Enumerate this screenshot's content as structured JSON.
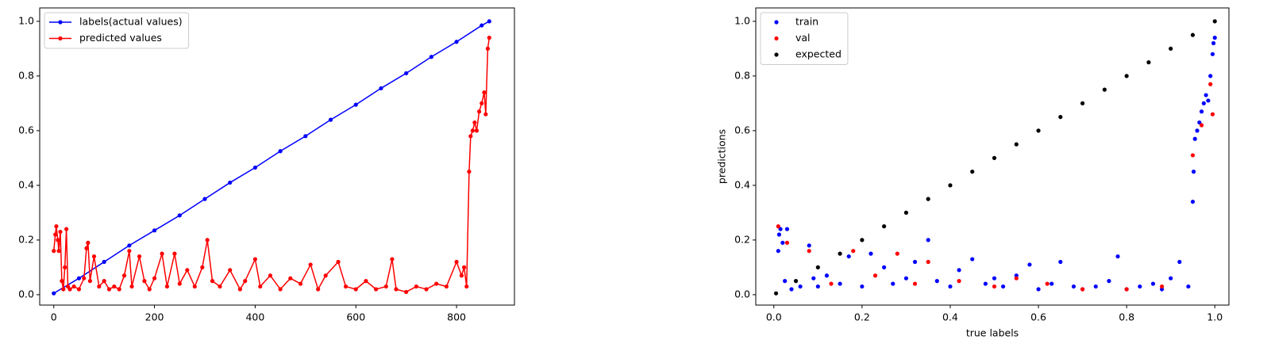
{
  "chart_data": [
    {
      "type": "line",
      "xlim": [
        -28,
        915
      ],
      "ylim": [
        -0.038,
        1.049
      ],
      "xticks": [
        0,
        200,
        400,
        600,
        800
      ],
      "yticks": [
        {
          "value": 0,
          "label": "0.0"
        },
        {
          "value": 0.2,
          "label": "0.2"
        },
        {
          "value": 0.4,
          "label": "0.4"
        },
        {
          "value": 0.6,
          "label": "0.6"
        },
        {
          "value": 0.8,
          "label": "0.8"
        },
        {
          "value": 1,
          "label": "1.0"
        }
      ],
      "legend": "upper left",
      "series": [
        {
          "name": "labels(actual values)",
          "color": "#0000ff",
          "x": [
            0,
            50,
            100,
            150,
            200,
            250,
            300,
            350,
            400,
            450,
            500,
            550,
            600,
            650,
            700,
            750,
            800,
            850,
            865
          ],
          "values": [
            0.005,
            0.06,
            0.12,
            0.18,
            0.235,
            0.29,
            0.35,
            0.41,
            0.465,
            0.525,
            0.58,
            0.64,
            0.695,
            0.755,
            0.81,
            0.87,
            0.925,
            0.985,
            1.0
          ]
        },
        {
          "name": "predicted values",
          "color": "#ff0000",
          "x": [
            0,
            3,
            5,
            8,
            10,
            13,
            16,
            19,
            22,
            25,
            28,
            32,
            40,
            50,
            60,
            65,
            68,
            72,
            80,
            90,
            100,
            110,
            120,
            130,
            140,
            150,
            155,
            170,
            180,
            190,
            200,
            215,
            225,
            240,
            250,
            265,
            280,
            295,
            305,
            315,
            330,
            350,
            370,
            380,
            400,
            410,
            430,
            450,
            470,
            490,
            510,
            525,
            540,
            565,
            580,
            600,
            620,
            640,
            660,
            672,
            680,
            700,
            720,
            740,
            760,
            780,
            800,
            810,
            815,
            820,
            825,
            828,
            832,
            836,
            840,
            845,
            850,
            855,
            858,
            862,
            865
          ],
          "values": [
            0.16,
            0.22,
            0.25,
            0.2,
            0.16,
            0.23,
            0.05,
            0.02,
            0.1,
            0.24,
            0.03,
            0.02,
            0.03,
            0.02,
            0.06,
            0.17,
            0.19,
            0.05,
            0.14,
            0.03,
            0.05,
            0.02,
            0.03,
            0.02,
            0.07,
            0.16,
            0.03,
            0.14,
            0.05,
            0.02,
            0.06,
            0.15,
            0.03,
            0.15,
            0.04,
            0.09,
            0.03,
            0.1,
            0.2,
            0.05,
            0.03,
            0.09,
            0.02,
            0.05,
            0.13,
            0.03,
            0.07,
            0.02,
            0.06,
            0.04,
            0.11,
            0.02,
            0.07,
            0.12,
            0.03,
            0.02,
            0.05,
            0.02,
            0.03,
            0.13,
            0.02,
            0.01,
            0.03,
            0.02,
            0.04,
            0.03,
            0.12,
            0.07,
            0.1,
            0.03,
            0.45,
            0.58,
            0.6,
            0.63,
            0.6,
            0.67,
            0.7,
            0.74,
            0.66,
            0.9,
            0.94
          ]
        }
      ]
    },
    {
      "type": "scatter",
      "x_label": "true labels",
      "y_label": "predictions",
      "xlim": [
        -0.041,
        1.032
      ],
      "ylim": [
        -0.038,
        1.049
      ],
      "xticks": [
        {
          "value": 0,
          "label": "0.0"
        },
        {
          "value": 0.2,
          "label": "0.2"
        },
        {
          "value": 0.4,
          "label": "0.4"
        },
        {
          "value": 0.6,
          "label": "0.6"
        },
        {
          "value": 0.8,
          "label": "0.8"
        },
        {
          "value": 1,
          "label": "1.0"
        }
      ],
      "yticks": [
        {
          "value": 0,
          "label": "0.0"
        },
        {
          "value": 0.2,
          "label": "0.2"
        },
        {
          "value": 0.4,
          "label": "0.4"
        },
        {
          "value": 0.6,
          "label": "0.6"
        },
        {
          "value": 0.8,
          "label": "0.8"
        },
        {
          "value": 1,
          "label": "1.0"
        }
      ],
      "legend": "upper left",
      "series": [
        {
          "name": "train",
          "color": "#0000ff",
          "x": [
            0.01,
            0.012,
            0.015,
            0.02,
            0.025,
            0.03,
            0.04,
            0.06,
            0.08,
            0.09,
            0.1,
            0.12,
            0.15,
            0.17,
            0.2,
            0.22,
            0.25,
            0.27,
            0.3,
            0.32,
            0.35,
            0.37,
            0.4,
            0.42,
            0.45,
            0.48,
            0.5,
            0.52,
            0.55,
            0.58,
            0.6,
            0.63,
            0.65,
            0.68,
            0.7,
            0.73,
            0.76,
            0.78,
            0.8,
            0.83,
            0.86,
            0.88,
            0.9,
            0.92,
            0.94,
            0.95,
            0.952,
            0.955,
            0.96,
            0.965,
            0.97,
            0.975,
            0.98,
            0.985,
            0.99,
            0.995,
            0.997,
            1.0
          ],
          "values": [
            0.16,
            0.22,
            0.24,
            0.19,
            0.05,
            0.24,
            0.02,
            0.03,
            0.18,
            0.06,
            0.03,
            0.07,
            0.04,
            0.14,
            0.03,
            0.15,
            0.1,
            0.04,
            0.06,
            0.12,
            0.2,
            0.05,
            0.03,
            0.09,
            0.13,
            0.04,
            0.06,
            0.03,
            0.07,
            0.11,
            0.02,
            0.04,
            0.12,
            0.03,
            0.02,
            0.03,
            0.05,
            0.14,
            0.02,
            0.03,
            0.04,
            0.02,
            0.06,
            0.12,
            0.03,
            0.34,
            0.45,
            0.57,
            0.6,
            0.63,
            0.67,
            0.7,
            0.73,
            0.71,
            0.8,
            0.88,
            0.92,
            0.94
          ]
        },
        {
          "name": "val",
          "color": "#ff0000",
          "x": [
            0.01,
            0.03,
            0.08,
            0.13,
            0.18,
            0.23,
            0.28,
            0.32,
            0.35,
            0.42,
            0.5,
            0.55,
            0.62,
            0.7,
            0.8,
            0.88,
            0.95,
            0.97,
            0.99,
            0.995
          ],
          "values": [
            0.25,
            0.19,
            0.16,
            0.04,
            0.16,
            0.07,
            0.15,
            0.04,
            0.12,
            0.05,
            0.03,
            0.06,
            0.04,
            0.02,
            0.02,
            0.03,
            0.51,
            0.62,
            0.77,
            0.66
          ]
        },
        {
          "name": "expected",
          "color": "#000000",
          "x": [
            0.005,
            0.05,
            0.1,
            0.15,
            0.2,
            0.25,
            0.3,
            0.35,
            0.4,
            0.45,
            0.5,
            0.55,
            0.6,
            0.65,
            0.7,
            0.75,
            0.8,
            0.85,
            0.9,
            0.95,
            1.0
          ],
          "values": [
            0.005,
            0.05,
            0.1,
            0.15,
            0.2,
            0.25,
            0.3,
            0.35,
            0.4,
            0.45,
            0.5,
            0.55,
            0.6,
            0.65,
            0.7,
            0.75,
            0.8,
            0.85,
            0.9,
            0.95,
            1.0
          ]
        }
      ]
    }
  ]
}
